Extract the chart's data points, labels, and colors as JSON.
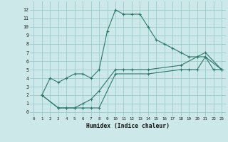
{
  "xlabel": "Humidex (Indice chaleur)",
  "background_color": "#cce8e8",
  "grid_color": "#99cccc",
  "line_color": "#2a7a6a",
  "xlim": [
    -0.5,
    23.5
  ],
  "ylim": [
    -0.5,
    13
  ],
  "xticks": [
    0,
    1,
    2,
    3,
    4,
    5,
    6,
    7,
    8,
    9,
    10,
    11,
    12,
    13,
    14,
    15,
    16,
    17,
    18,
    19,
    20,
    21,
    22,
    23
  ],
  "yticks": [
    0,
    1,
    2,
    3,
    4,
    5,
    6,
    7,
    8,
    9,
    10,
    11,
    12
  ],
  "line1_x": [
    1,
    2,
    3,
    4,
    5,
    6,
    7,
    8,
    9,
    10,
    11,
    12,
    13,
    14,
    15,
    16,
    17,
    18,
    19,
    20,
    21,
    22,
    23
  ],
  "line1_y": [
    2,
    4,
    3.5,
    4,
    4.5,
    4.5,
    4,
    5,
    9.5,
    12,
    11.5,
    11.5,
    11.5,
    10,
    8.5,
    8,
    7.5,
    7,
    6.5,
    6.5,
    6.5,
    5,
    5
  ],
  "line2_x": [
    1,
    3,
    4,
    5,
    6,
    7,
    8,
    10,
    11,
    12,
    14,
    18,
    20,
    21,
    23
  ],
  "line2_y": [
    2,
    0.5,
    0.5,
    0.5,
    1,
    1.5,
    2.5,
    5,
    5,
    5,
    5,
    5.5,
    6.5,
    7,
    5
  ],
  "line3_x": [
    1,
    3,
    4,
    5,
    6,
    7,
    8,
    10,
    14,
    18,
    19,
    20,
    21,
    23
  ],
  "line3_y": [
    2,
    0.5,
    0.5,
    0.5,
    0.5,
    0.5,
    0.5,
    4.5,
    4.5,
    5,
    5,
    5,
    6.5,
    5
  ]
}
